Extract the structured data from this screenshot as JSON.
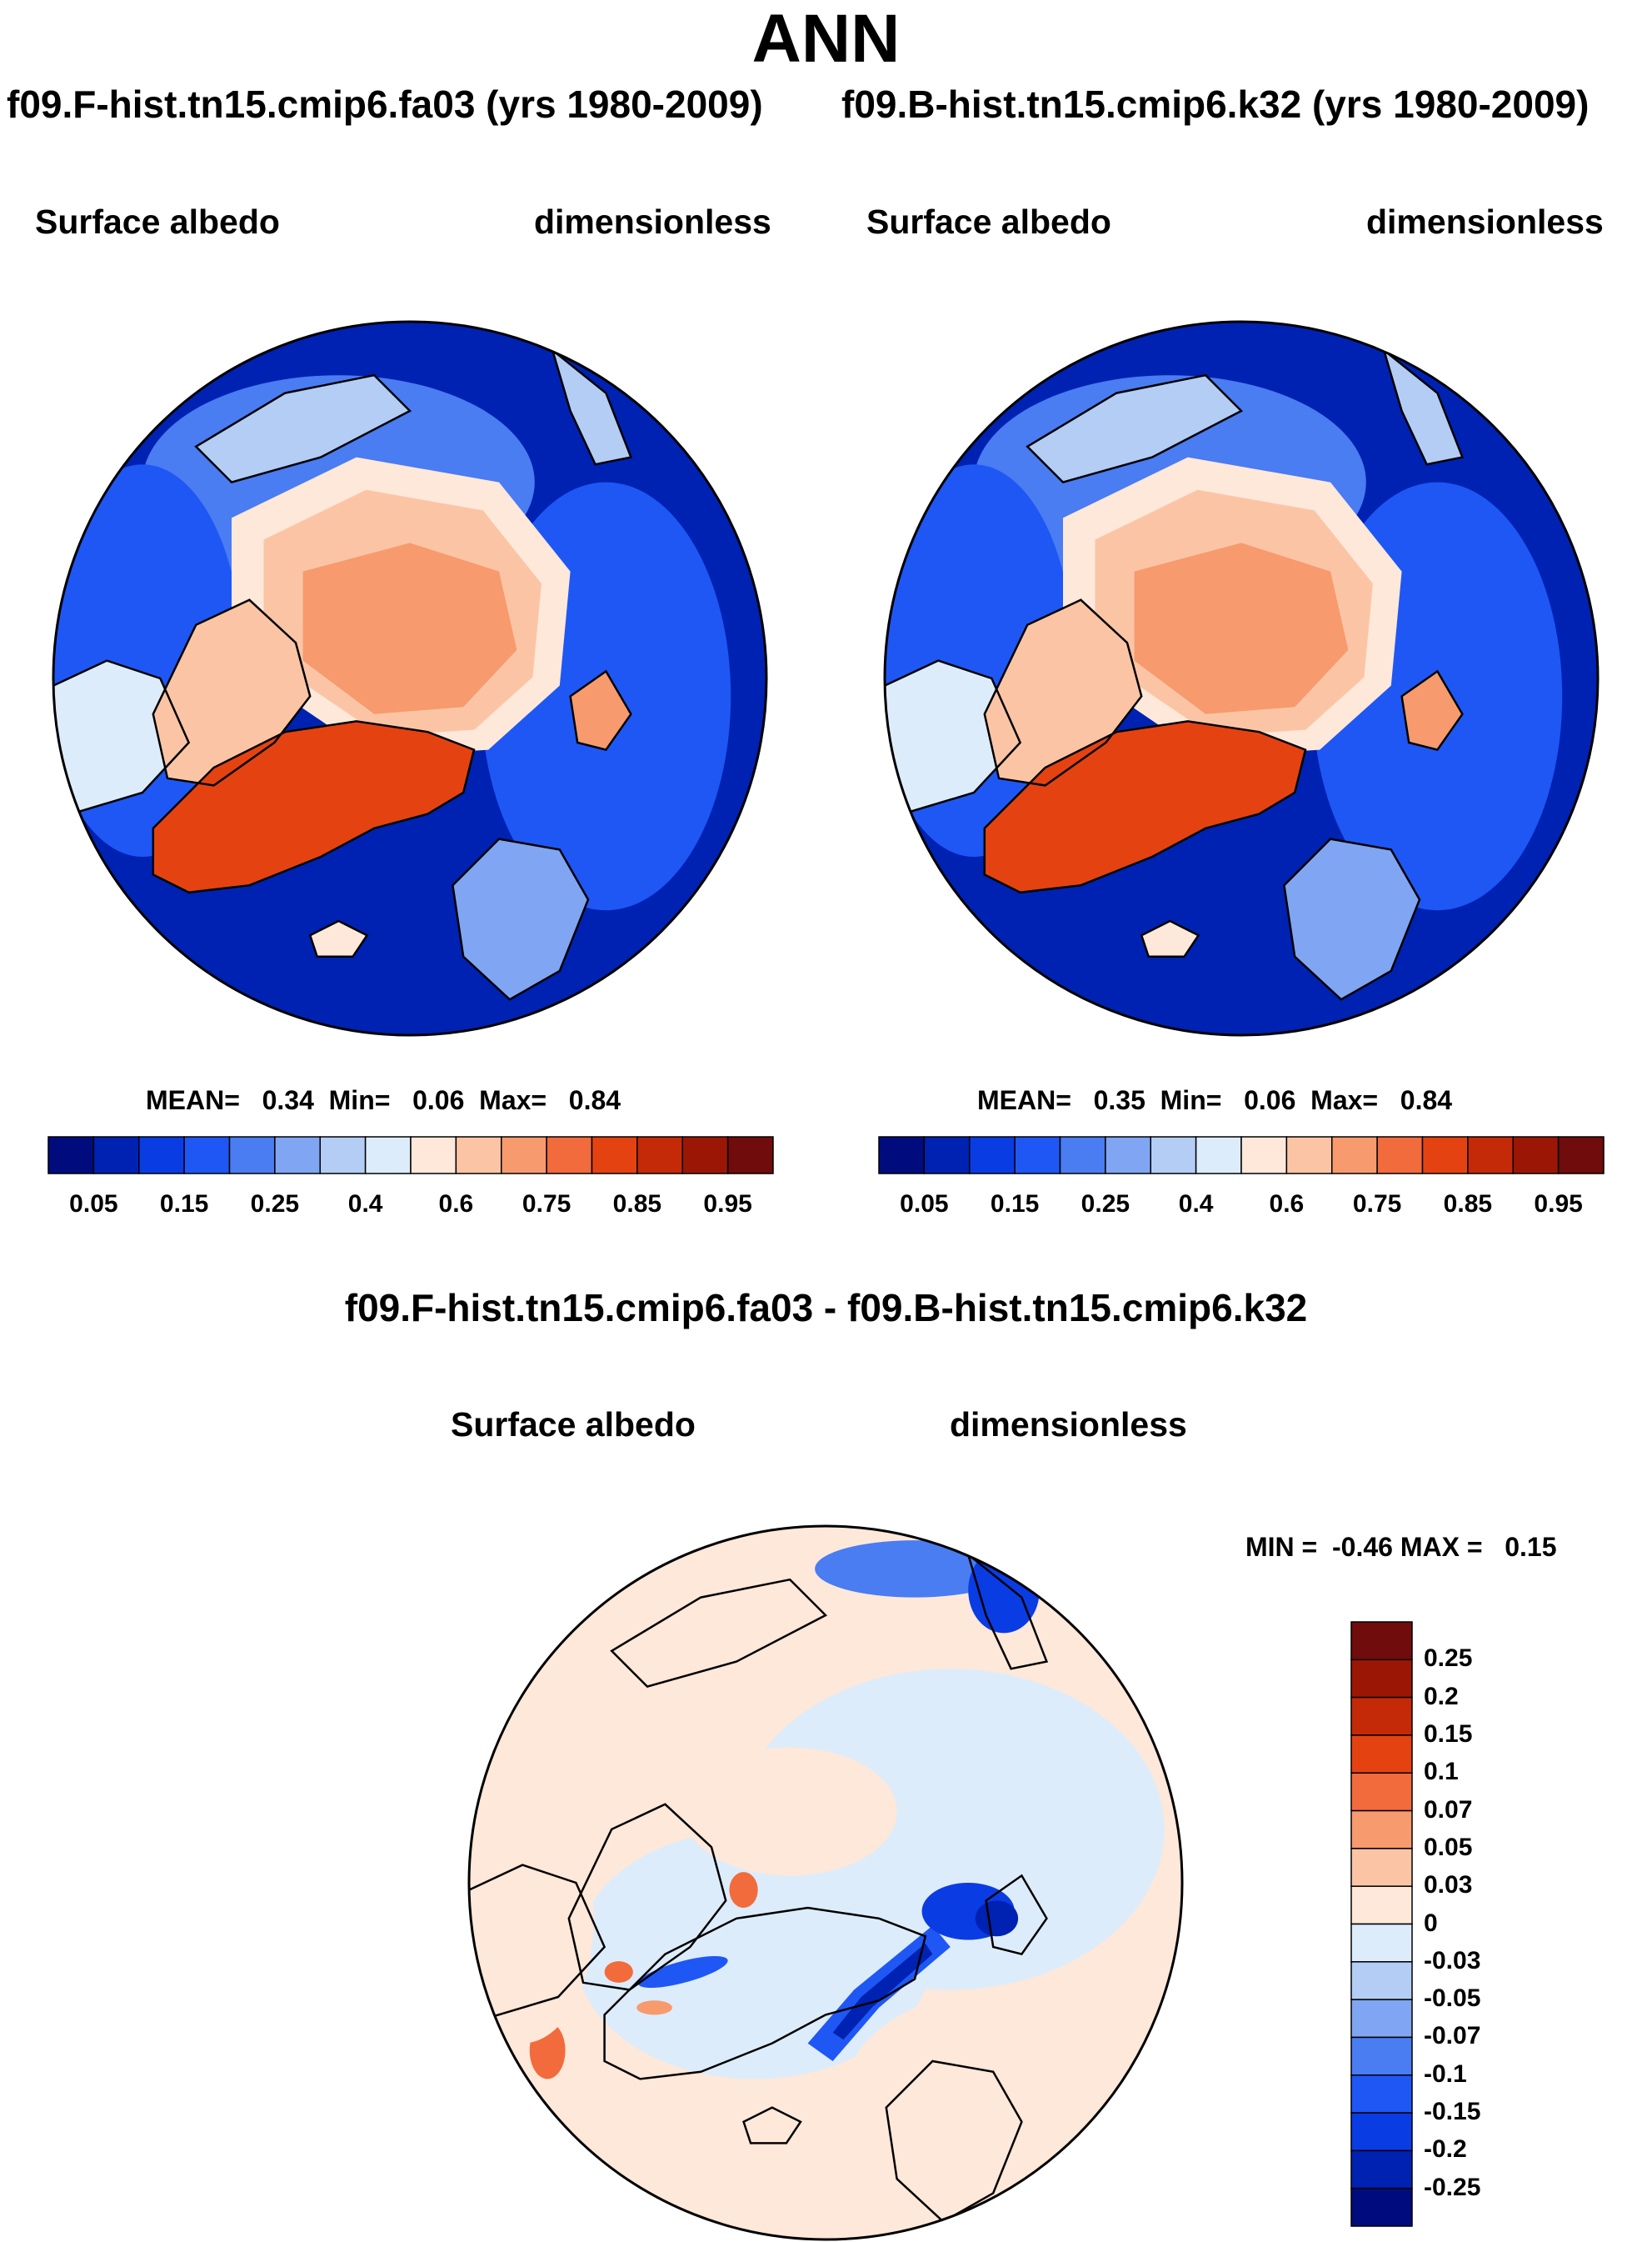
{
  "title": "ANN",
  "case_a": "f09.F-hist.tn15.cmip6.fa03 (yrs 1980-2009)",
  "case_b": "f09.B-hist.tn15.cmip6.k32 (yrs 1980-2009)",
  "diff_title": "f09.F-hist.tn15.cmip6.fa03 - f09.B-hist.tn15.cmip6.k32",
  "panels": [
    {
      "variable": "Surface albedo",
      "units": "dimensionless",
      "stats": {
        "mean_label": "MEAN=",
        "mean": "0.34",
        "min_label": "Min=",
        "min": "0.06",
        "max_label": "Max=",
        "max": "0.84"
      }
    },
    {
      "variable": "Surface albedo",
      "units": "dimensionless",
      "stats": {
        "mean_label": "MEAN=",
        "mean": "0.35",
        "min_label": "Min=",
        "min": "0.06",
        "max_label": "Max=",
        "max": "0.84"
      }
    },
    {
      "variable": "Surface albedo",
      "units": "dimensionless",
      "minmax": {
        "min_label": "MIN =",
        "min": "-0.46",
        "max_label": "MAX =",
        "max": "0.15"
      }
    }
  ],
  "chart_data": [
    {
      "type": "heatmap",
      "projection": "north-polar-stereographic",
      "title": "f09.F-hist.tn15.cmip6.fa03 (yrs 1980-2009)",
      "variable": "Surface albedo",
      "units": "dimensionless",
      "mean": 0.34,
      "min": 0.06,
      "max": 0.84,
      "colorbar_levels": [
        0.05,
        0.1,
        0.15,
        0.2,
        0.25,
        0.3,
        0.4,
        0.5,
        0.6,
        0.7,
        0.75,
        0.8,
        0.85,
        0.9,
        0.95
      ],
      "colorbar_tick_labels": [
        "0.05",
        "0.15",
        "0.25",
        "0.4",
        "0.6",
        "0.75",
        "0.85",
        "0.95"
      ]
    },
    {
      "type": "heatmap",
      "projection": "north-polar-stereographic",
      "title": "f09.B-hist.tn15.cmip6.k32 (yrs 1980-2009)",
      "variable": "Surface albedo",
      "units": "dimensionless",
      "mean": 0.35,
      "min": 0.06,
      "max": 0.84,
      "colorbar_levels": [
        0.05,
        0.1,
        0.15,
        0.2,
        0.25,
        0.3,
        0.4,
        0.5,
        0.6,
        0.7,
        0.75,
        0.8,
        0.85,
        0.9,
        0.95
      ],
      "colorbar_tick_labels": [
        "0.05",
        "0.15",
        "0.25",
        "0.4",
        "0.6",
        "0.75",
        "0.85",
        "0.95"
      ]
    },
    {
      "type": "heatmap",
      "projection": "north-polar-stereographic",
      "title": "f09.F-hist.tn15.cmip6.fa03 - f09.B-hist.tn15.cmip6.k32",
      "variable": "Surface albedo",
      "units": "dimensionless",
      "min": -0.46,
      "max": 0.15,
      "colorbar_levels": [
        0.25,
        0.2,
        0.15,
        0.1,
        0.07,
        0.05,
        0.03,
        0,
        -0.03,
        -0.05,
        -0.07,
        -0.1,
        -0.15,
        -0.2,
        -0.25
      ],
      "colorbar_tick_labels": [
        "0.25",
        "0.2",
        "0.15",
        "0.1",
        "0.07",
        "0.05",
        "0.03",
        "0",
        "-0.03",
        "-0.05",
        "-0.07",
        "-0.1",
        "-0.15",
        "-0.2",
        "-0.25"
      ]
    }
  ],
  "colors": {
    "absolute_scale": [
      "#000c7d",
      "#0022b2",
      "#0a3ce4",
      "#1f57f5",
      "#4a7cf2",
      "#80a5f2",
      "#b3cdf5",
      "#ddecfa",
      "#fde8da",
      "#fbc5a5",
      "#f79a6e",
      "#f26b3c",
      "#e54212",
      "#c42a08",
      "#9c1606",
      "#700c0c"
    ],
    "diff_scale": [
      "#000c7d",
      "#0022b2",
      "#0a3ce4",
      "#1f57f5",
      "#4a7cf2",
      "#80a5f2",
      "#b3cdf5",
      "#ddecfa",
      "#fde8da",
      "#fbc5a5",
      "#f79a6e",
      "#f26b3c",
      "#e54212",
      "#c42a08",
      "#9c1606",
      "#700c0c"
    ]
  }
}
